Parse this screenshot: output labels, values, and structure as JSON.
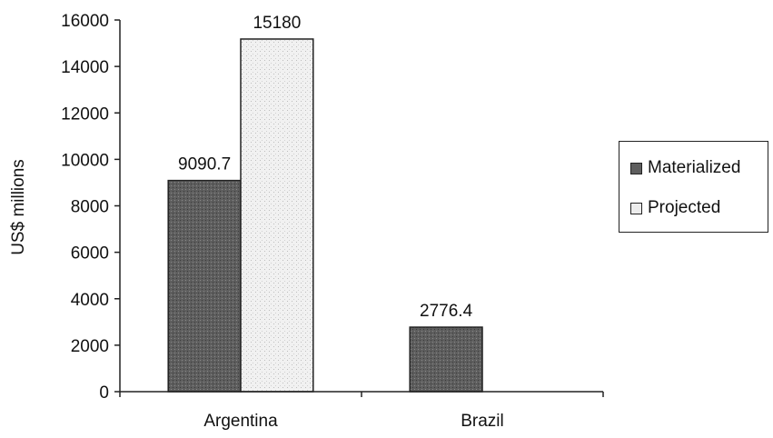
{
  "chart_data": {
    "type": "bar",
    "categories": [
      "Argentina",
      "Brazil"
    ],
    "series": [
      {
        "name": "Materialized",
        "values": [
          9090.7,
          2776.4
        ],
        "color": "#5e5e5e"
      },
      {
        "name": "Projected",
        "values": [
          15180,
          null
        ],
        "color": "#ececec"
      }
    ],
    "data_labels": [
      [
        "9090.7",
        "2776.4"
      ],
      [
        "15180",
        ""
      ]
    ],
    "ylabel": "US$ millions",
    "xlabel": "",
    "ylim": [
      0,
      16000
    ],
    "yticks": [
      0,
      2000,
      4000,
      6000,
      8000,
      10000,
      12000,
      14000,
      16000
    ],
    "grid": false,
    "legend_position": "right"
  }
}
